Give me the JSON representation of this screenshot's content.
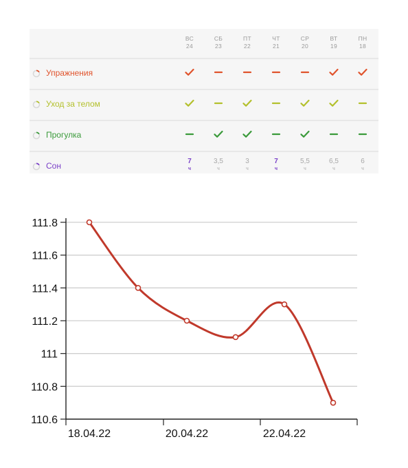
{
  "tracker": {
    "days": [
      {
        "dow": "ВС",
        "date": "24"
      },
      {
        "dow": "СБ",
        "date": "23"
      },
      {
        "dow": "ПТ",
        "date": "22"
      },
      {
        "dow": "ЧТ",
        "date": "21"
      },
      {
        "dow": "СР",
        "date": "20"
      },
      {
        "dow": "ВТ",
        "date": "19"
      },
      {
        "dow": "ПН",
        "date": "18"
      }
    ],
    "habits": [
      {
        "name": "Упражнения",
        "color": "#e0532c",
        "marks": [
          "check",
          "dash",
          "dash",
          "dash",
          "dash",
          "check",
          "check"
        ]
      },
      {
        "name": "Уход за телом",
        "color": "#b3c02c",
        "marks": [
          "check",
          "dash",
          "check",
          "dash",
          "check",
          "check",
          "dash"
        ]
      },
      {
        "name": "Прогулка",
        "color": "#3a9a3a",
        "marks": [
          "dash",
          "check",
          "check",
          "dash",
          "check",
          "dash",
          "dash"
        ]
      }
    ],
    "sleep": {
      "name": "Сон",
      "color": "#7a40c8",
      "unit": "ч",
      "values": [
        "7",
        "3,5",
        "3",
        "7",
        "5,5",
        "6,5",
        "6"
      ],
      "highlight": [
        true,
        false,
        false,
        true,
        false,
        false,
        false
      ]
    }
  },
  "chart_data": {
    "type": "line",
    "x": [
      "18.04.22",
      "19.04.22",
      "20.04.22",
      "21.04.22",
      "22.04.22",
      "23.04.22"
    ],
    "values": [
      111.8,
      111.4,
      111.2,
      111.1,
      111.3,
      110.7
    ],
    "x_tick_labels": [
      "18.04.22",
      "20.04.22",
      "22.04.22"
    ],
    "y_tick_labels": [
      "110.6",
      "110.8",
      "111",
      "111.2",
      "111.4",
      "111.6",
      "111.8"
    ],
    "ylim": [
      110.6,
      111.8
    ],
    "line_color": "#c0392b",
    "grid": "horizontal",
    "title": "",
    "xlabel": "",
    "ylabel": ""
  }
}
